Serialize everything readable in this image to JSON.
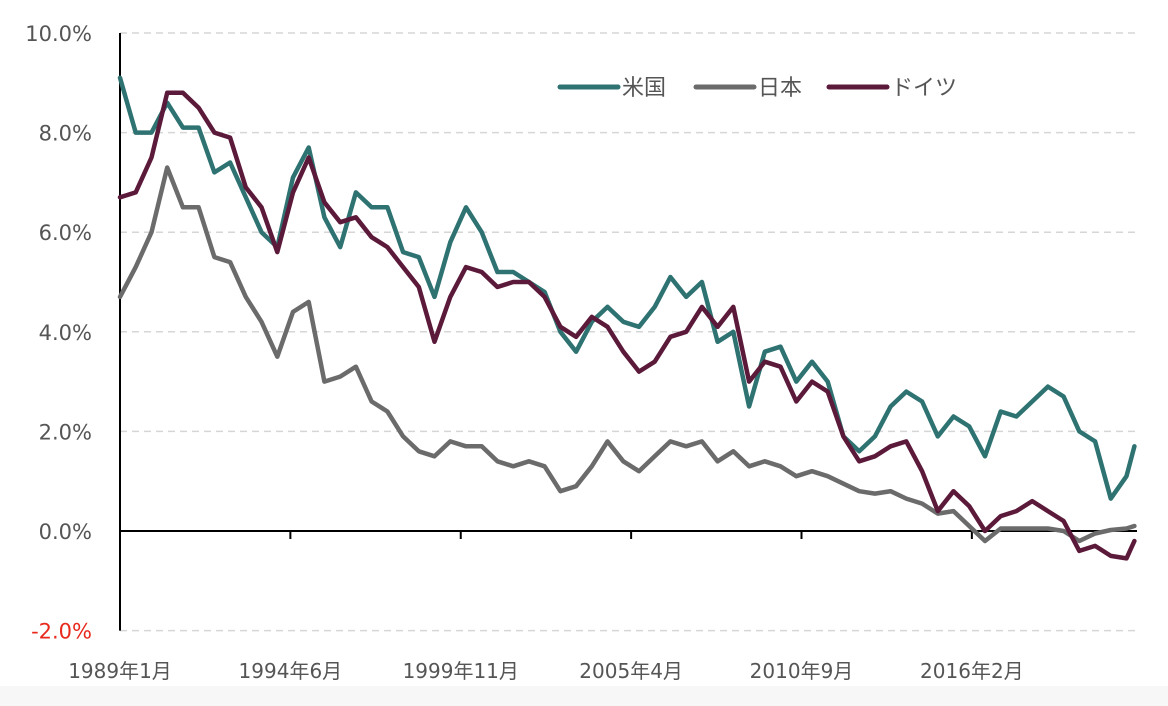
{
  "chart_data": {
    "type": "line",
    "title": "",
    "xlabel": "",
    "ylabel": "",
    "ylim": [
      -2,
      10
    ],
    "y_ticks": [
      {
        "value": 10,
        "label": "10.0%"
      },
      {
        "value": 8,
        "label": "8.0%"
      },
      {
        "value": 6,
        "label": "6.0%"
      },
      {
        "value": 4,
        "label": "4.0%"
      },
      {
        "value": 2,
        "label": "2.0%"
      },
      {
        "value": 0,
        "label": "0.0%"
      },
      {
        "value": -2,
        "label": "-2.0%"
      }
    ],
    "negative_label_color": "#e8291c",
    "x_start": "1989-01",
    "x_ticks": [
      {
        "month_index": 0,
        "label": "1989年1月"
      },
      {
        "month_index": 65,
        "label": "1994年6月"
      },
      {
        "month_index": 130,
        "label": "1999年11月"
      },
      {
        "month_index": 195,
        "label": "2005年4月"
      },
      {
        "month_index": 260,
        "label": "2010年9月"
      },
      {
        "month_index": 325,
        "label": "2016年2月"
      }
    ],
    "x_months_total": 388,
    "grid": "horizontal dashed",
    "legend_position": "top-right",
    "sample_step_months": 6,
    "series": [
      {
        "name": "米国",
        "color": "#2e7272",
        "values": [
          9.1,
          8.0,
          8.0,
          8.6,
          8.1,
          8.1,
          7.2,
          7.4,
          6.7,
          6.0,
          5.7,
          7.1,
          7.7,
          6.3,
          5.7,
          6.8,
          6.5,
          6.5,
          5.6,
          5.5,
          4.7,
          5.8,
          6.5,
          6.0,
          5.2,
          5.2,
          5.0,
          4.8,
          4.0,
          3.6,
          4.2,
          4.5,
          4.2,
          4.1,
          4.5,
          5.1,
          4.7,
          5.0,
          3.8,
          4.0,
          2.5,
          3.6,
          3.7,
          3.0,
          3.4,
          3.0,
          1.9,
          1.6,
          1.9,
          2.5,
          2.8,
          2.6,
          1.9,
          2.3,
          2.1,
          1.5,
          2.4,
          2.3,
          2.6,
          2.9,
          2.7,
          2.0,
          1.8,
          0.65,
          1.1,
          1.7
        ]
      },
      {
        "name": "日本",
        "color": "#6b6b6b",
        "values": [
          4.7,
          5.3,
          6.0,
          7.3,
          6.5,
          6.5,
          5.5,
          5.4,
          4.7,
          4.2,
          3.5,
          4.4,
          4.6,
          3.0,
          3.1,
          3.3,
          2.6,
          2.4,
          1.9,
          1.6,
          1.5,
          1.8,
          1.7,
          1.7,
          1.4,
          1.3,
          1.4,
          1.3,
          0.8,
          0.9,
          1.3,
          1.8,
          1.4,
          1.2,
          1.5,
          1.8,
          1.7,
          1.8,
          1.4,
          1.6,
          1.3,
          1.4,
          1.3,
          1.1,
          1.2,
          1.1,
          0.95,
          0.8,
          0.75,
          0.8,
          0.65,
          0.55,
          0.35,
          0.4,
          0.1,
          -0.2,
          0.05,
          0.05,
          0.05,
          0.05,
          0.0,
          -0.2,
          -0.05,
          0.02,
          0.05,
          0.1
        ]
      },
      {
        "name": "ドイツ",
        "color": "#5c1a3a",
        "values": [
          6.7,
          6.8,
          7.5,
          8.8,
          8.8,
          8.5,
          8.0,
          7.9,
          6.9,
          6.5,
          5.6,
          6.8,
          7.5,
          6.6,
          6.2,
          6.3,
          5.9,
          5.7,
          5.3,
          4.9,
          3.8,
          4.7,
          5.3,
          5.2,
          4.9,
          5.0,
          5.0,
          4.7,
          4.1,
          3.9,
          4.3,
          4.1,
          3.6,
          3.2,
          3.4,
          3.9,
          4.0,
          4.5,
          4.1,
          4.5,
          3.0,
          3.4,
          3.3,
          2.6,
          3.0,
          2.8,
          1.9,
          1.4,
          1.5,
          1.7,
          1.8,
          1.2,
          0.4,
          0.8,
          0.5,
          0.0,
          0.3,
          0.4,
          0.6,
          0.4,
          0.2,
          -0.4,
          -0.3,
          -0.5,
          -0.55,
          -0.2
        ]
      }
    ]
  }
}
